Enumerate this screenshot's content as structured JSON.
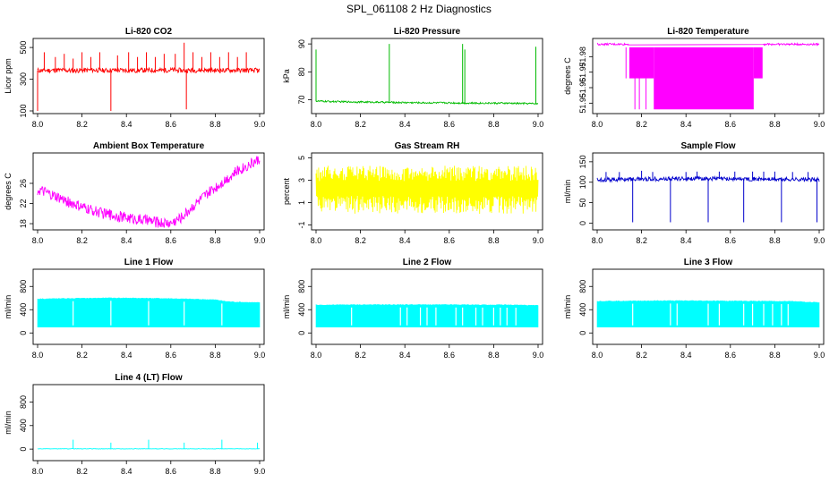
{
  "figure_title": "SPL_061108  2 Hz Diagnostics",
  "chart_data": [
    {
      "type": "line",
      "title": "Li-820 CO2",
      "xlabel": "",
      "ylabel": "Licor ppm",
      "color": "#ff0000",
      "xlim": [
        8.0,
        9.0
      ],
      "ylim": [
        100,
        540
      ],
      "x_ticks": [
        "8.0",
        "8.2",
        "8.4",
        "8.6",
        "8.8",
        "9.0"
      ],
      "y_ticks": [
        "100",
        "300",
        "500"
      ],
      "series": [
        {
          "x": [
            8.0,
            8.05,
            8.1,
            8.15,
            8.2,
            8.25,
            8.3,
            8.35,
            8.4,
            8.45,
            8.5,
            8.55,
            8.6,
            8.65,
            8.7,
            8.75,
            8.8,
            8.85,
            8.9,
            8.95,
            9.0
          ],
          "y": [
            355,
            356,
            357,
            354,
            356,
            358,
            355,
            357,
            356,
            355,
            357,
            356,
            358,
            355,
            356,
            357,
            355,
            356,
            357,
            355,
            356
          ],
          "spikes": [
            [
              8.0,
              100
            ],
            [
              8.03,
              470
            ],
            [
              8.08,
              440
            ],
            [
              8.12,
              460
            ],
            [
              8.16,
              430
            ],
            [
              8.2,
              470
            ],
            [
              8.24,
              440
            ],
            [
              8.28,
              470
            ],
            [
              8.33,
              100
            ],
            [
              8.36,
              450
            ],
            [
              8.41,
              470
            ],
            [
              8.45,
              440
            ],
            [
              8.49,
              470
            ],
            [
              8.53,
              440
            ],
            [
              8.57,
              460
            ],
            [
              8.62,
              460
            ],
            [
              8.66,
              530
            ],
            [
              8.67,
              110
            ],
            [
              8.7,
              470
            ],
            [
              8.74,
              440
            ],
            [
              8.78,
              470
            ],
            [
              8.82,
              440
            ],
            [
              8.86,
              470
            ],
            [
              8.9,
              440
            ],
            [
              8.94,
              470
            ],
            [
              8.99,
              340
            ]
          ],
          "band": 15
        }
      ]
    },
    {
      "type": "line",
      "title": "Li-820 Pressure",
      "xlabel": "",
      "ylabel": "kPa",
      "color": "#00bb00",
      "xlim": [
        8.0,
        9.0
      ],
      "ylim": [
        66,
        91
      ],
      "x_ticks": [
        "8.0",
        "8.2",
        "8.4",
        "8.6",
        "8.8",
        "9.0"
      ],
      "y_ticks": [
        "70",
        "80",
        "90"
      ],
      "series": [
        {
          "x": [
            8.0,
            8.1,
            8.2,
            8.3,
            8.4,
            8.5,
            8.6,
            8.7,
            8.8,
            8.9,
            9.0
          ],
          "y": [
            69.5,
            69.3,
            69.2,
            69.1,
            69.0,
            68.9,
            68.9,
            68.8,
            68.8,
            68.7,
            68.6
          ],
          "spikes": [
            [
              8.0,
              88
            ],
            [
              8.0,
              80
            ],
            [
              8.33,
              90
            ],
            [
              8.66,
              90
            ],
            [
              8.67,
              88
            ],
            [
              8.99,
              89
            ]
          ],
          "band": 0.3
        }
      ]
    },
    {
      "type": "line",
      "title": "Li-820 Temperature",
      "xlabel": "",
      "ylabel": "degrees C",
      "color": "#ff00ff",
      "xlim": [
        8.0,
        9.0
      ],
      "ylim": [
        51.945,
        51.99
      ],
      "x_ticks": [
        "8.0",
        "8.2",
        "8.4",
        "8.6",
        "8.8",
        "9.0"
      ],
      "y_ticks": [
        "51.95",
        "51.96",
        "51.97",
        "51.98"
      ],
      "series": [
        {
          "x": [
            8.0,
            8.1,
            8.13,
            8.2,
            8.25,
            8.3,
            8.4,
            8.5,
            8.6,
            8.7,
            8.75,
            8.8,
            8.9,
            9.0
          ],
          "y": [
            51.988,
            51.988,
            51.986,
            51.97,
            51.96,
            51.95,
            51.95,
            51.95,
            51.95,
            51.95,
            51.97,
            51.988,
            51.988,
            51.988
          ],
          "filled_regions": [
            [
              8.145,
              8.255,
              51.966,
              51.986
            ],
            [
              8.255,
              8.705,
              51.946,
              51.986
            ],
            [
              8.705,
              8.745,
              51.966,
              51.986
            ]
          ],
          "spikes": [
            [
              8.13,
              51.966
            ],
            [
              8.17,
              51.946
            ],
            [
              8.19,
              51.946
            ],
            [
              8.22,
              51.946
            ]
          ],
          "band": 0.0006
        }
      ]
    },
    {
      "type": "line",
      "title": "Ambient Box Temperature",
      "xlabel": "",
      "ylabel": "degrees C",
      "color": "#ff00ff",
      "xlim": [
        8.0,
        9.0
      ],
      "ylim": [
        17.3,
        31.5
      ],
      "x_ticks": [
        "8.0",
        "8.2",
        "8.4",
        "8.6",
        "8.8",
        "9.0"
      ],
      "y_ticks": [
        "18",
        "22",
        "26"
      ],
      "series": [
        {
          "x": [
            8.0,
            8.1,
            8.2,
            8.3,
            8.4,
            8.5,
            8.55,
            8.6,
            8.65,
            8.7,
            8.8,
            8.9,
            9.0
          ],
          "y": [
            24.7,
            23.0,
            21.2,
            20.0,
            19.2,
            18.6,
            18.2,
            18.1,
            19.3,
            21.5,
            25.2,
            28.5,
            30.8
          ],
          "band": 1.1
        }
      ]
    },
    {
      "type": "line",
      "title": "Gas Stream RH",
      "xlabel": "",
      "ylabel": "percent",
      "color": "#ffff00",
      "xlim": [
        8.0,
        9.0
      ],
      "ylim": [
        -1.2,
        5.2
      ],
      "x_ticks": [
        "8.0",
        "8.2",
        "8.4",
        "8.6",
        "8.8",
        "9.0"
      ],
      "y_ticks": [
        "-1",
        "1",
        "3",
        "5"
      ],
      "series": [
        {
          "x": [
            8.0,
            8.1,
            8.2,
            8.3,
            8.4,
            8.5,
            8.6,
            8.7,
            8.8,
            8.9,
            9.0
          ],
          "y": [
            2.2,
            2.3,
            2.2,
            2.2,
            2.3,
            2.2,
            2.2,
            2.3,
            2.2,
            2.2,
            2.3
          ],
          "range": [
            0.0,
            4.3
          ],
          "band": 1.6
        }
      ]
    },
    {
      "type": "line",
      "title": "Sample Flow",
      "xlabel": "",
      "ylabel": "ml/min",
      "color": "#0000cc",
      "xlim": [
        8.0,
        9.0
      ],
      "ylim": [
        -10,
        165
      ],
      "x_ticks": [
        "8.0",
        "8.2",
        "8.4",
        "8.6",
        "8.8",
        "9.0"
      ],
      "y_ticks": [
        "0",
        "50",
        "100",
        "150"
      ],
      "series": [
        {
          "x": [
            8.0,
            8.1,
            8.2,
            8.3,
            8.4,
            8.5,
            8.6,
            8.7,
            8.8,
            8.9,
            9.0
          ],
          "y": [
            106,
            107,
            108,
            108,
            109,
            109,
            108,
            108,
            107,
            107,
            106
          ],
          "spikes": [
            [
              8.16,
              2
            ],
            [
              8.33,
              2
            ],
            [
              8.5,
              2
            ],
            [
              8.66,
              2
            ],
            [
              8.83,
              2
            ],
            [
              8.99,
              2
            ],
            [
              8.04,
              125
            ],
            [
              8.1,
              125
            ],
            [
              8.2,
              128
            ],
            [
              8.25,
              125
            ],
            [
              8.4,
              125
            ],
            [
              8.45,
              126
            ],
            [
              8.55,
              126
            ],
            [
              8.62,
              126
            ],
            [
              8.7,
              126
            ],
            [
              8.75,
              126
            ],
            [
              8.8,
              126
            ],
            [
              8.88,
              125
            ],
            [
              8.95,
              125
            ]
          ],
          "band": 5
        }
      ]
    },
    {
      "type": "area",
      "title": "Line 1 Flow",
      "xlabel": "",
      "ylabel": "ml/min",
      "color": "#00ffff",
      "xlim": [
        8.0,
        9.0
      ],
      "ylim": [
        -150,
        1050
      ],
      "x_ticks": [
        "8.0",
        "8.2",
        "8.4",
        "8.6",
        "8.8",
        "9.0"
      ],
      "y_ticks": [
        "0",
        "400",
        "800"
      ],
      "series": [
        {
          "x": [
            8.0,
            8.1,
            8.2,
            8.3,
            8.4,
            8.5,
            8.6,
            8.7,
            8.8,
            8.85,
            8.9,
            9.0
          ],
          "y": [
            585,
            590,
            595,
            600,
            600,
            595,
            590,
            580,
            570,
            540,
            530,
            520
          ],
          "baseline": 100,
          "gaps": [
            8.16,
            8.33,
            8.5,
            8.66,
            8.83
          ]
        }
      ]
    },
    {
      "type": "area",
      "title": "Line 2 Flow",
      "xlabel": "",
      "ylabel": "ml/min",
      "color": "#00ffff",
      "xlim": [
        8.0,
        9.0
      ],
      "ylim": [
        -150,
        1050
      ],
      "x_ticks": [
        "8.0",
        "8.2",
        "8.4",
        "8.6",
        "8.8",
        "9.0"
      ],
      "y_ticks": [
        "0",
        "400",
        "800"
      ],
      "series": [
        {
          "x": [
            8.0,
            8.1,
            8.2,
            8.3,
            8.4,
            8.5,
            8.6,
            8.7,
            8.8,
            8.9,
            9.0
          ],
          "y": [
            480,
            482,
            484,
            485,
            485,
            485,
            484,
            483,
            482,
            480,
            470
          ],
          "baseline": 100,
          "gaps": [
            8.16,
            8.38,
            8.41,
            8.47,
            8.5,
            8.54,
            8.63,
            8.66,
            8.72,
            8.75,
            8.8,
            8.83,
            8.86,
            8.9
          ]
        }
      ]
    },
    {
      "type": "area",
      "title": "Line 3 Flow",
      "xlabel": "",
      "ylabel": "ml/min",
      "color": "#00ffff",
      "xlim": [
        8.0,
        9.0
      ],
      "ylim": [
        -150,
        1050
      ],
      "x_ticks": [
        "8.0",
        "8.2",
        "8.4",
        "8.6",
        "8.8",
        "9.0"
      ],
      "y_ticks": [
        "0",
        "400",
        "800"
      ],
      "series": [
        {
          "x": [
            8.0,
            8.1,
            8.2,
            8.3,
            8.4,
            8.5,
            8.6,
            8.7,
            8.8,
            8.9,
            9.0
          ],
          "y": [
            545,
            548,
            550,
            552,
            552,
            550,
            548,
            546,
            544,
            540,
            520
          ],
          "baseline": 100,
          "gaps": [
            8.16,
            8.33,
            8.5,
            8.66,
            8.83,
            8.36,
            8.55,
            8.7,
            8.75,
            8.79,
            8.86
          ],
          "spikes": [
            [
              8.0,
              10
            ],
            [
              8.33,
              20
            ],
            [
              8.66,
              30
            ]
          ]
        }
      ]
    },
    {
      "type": "line",
      "title": "Line 4 (LT) Flow",
      "xlabel": "",
      "ylabel": "ml/min",
      "color": "#00ffff",
      "xlim": [
        8.0,
        9.0
      ],
      "ylim": [
        -150,
        1050
      ],
      "x_ticks": [
        "8.0",
        "8.2",
        "8.4",
        "8.6",
        "8.8",
        "9.0"
      ],
      "y_ticks": [
        "0",
        "400",
        "800"
      ],
      "series": [
        {
          "x": [
            8.0,
            8.2,
            8.4,
            8.6,
            8.8,
            9.0
          ],
          "y": [
            5,
            5,
            5,
            5,
            5,
            5
          ],
          "spikes": [
            [
              8.16,
              160
            ],
            [
              8.33,
              110
            ],
            [
              8.5,
              160
            ],
            [
              8.66,
              110
            ],
            [
              8.83,
              160
            ],
            [
              8.99,
              110
            ]
          ],
          "band": 3
        }
      ]
    }
  ]
}
